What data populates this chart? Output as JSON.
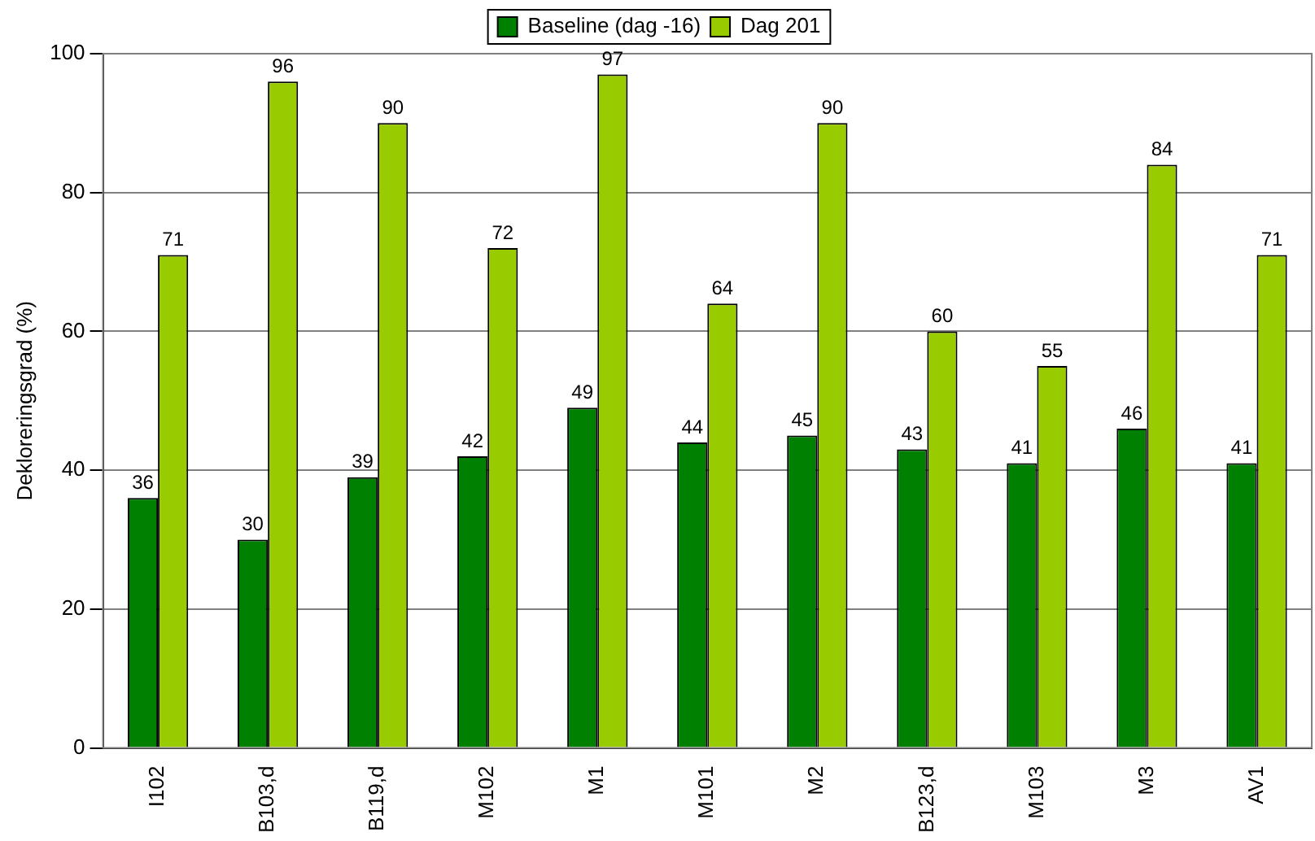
{
  "chart_data": {
    "type": "bar",
    "ylabel": "Dekloreringsgrad (%)",
    "categories": [
      "I102",
      "B103,d",
      "B119,d",
      "M102",
      "M1",
      "M101",
      "M2",
      "B123,d",
      "M103",
      "M3",
      "AV1"
    ],
    "series": [
      {
        "name": "Baseline (dag -16)",
        "color": "#008000",
        "values": [
          36,
          30,
          39,
          42,
          49,
          44,
          45,
          43,
          41,
          46,
          41
        ]
      },
      {
        "name": "Dag 201",
        "color": "#99cc00",
        "values": [
          71,
          96,
          90,
          72,
          97,
          64,
          90,
          60,
          55,
          84,
          71
        ]
      }
    ],
    "ylim": [
      0,
      100
    ],
    "yticks": [
      0,
      20,
      40,
      60,
      80,
      100
    ],
    "grid": "y",
    "legend": "top",
    "data_labels": true
  }
}
